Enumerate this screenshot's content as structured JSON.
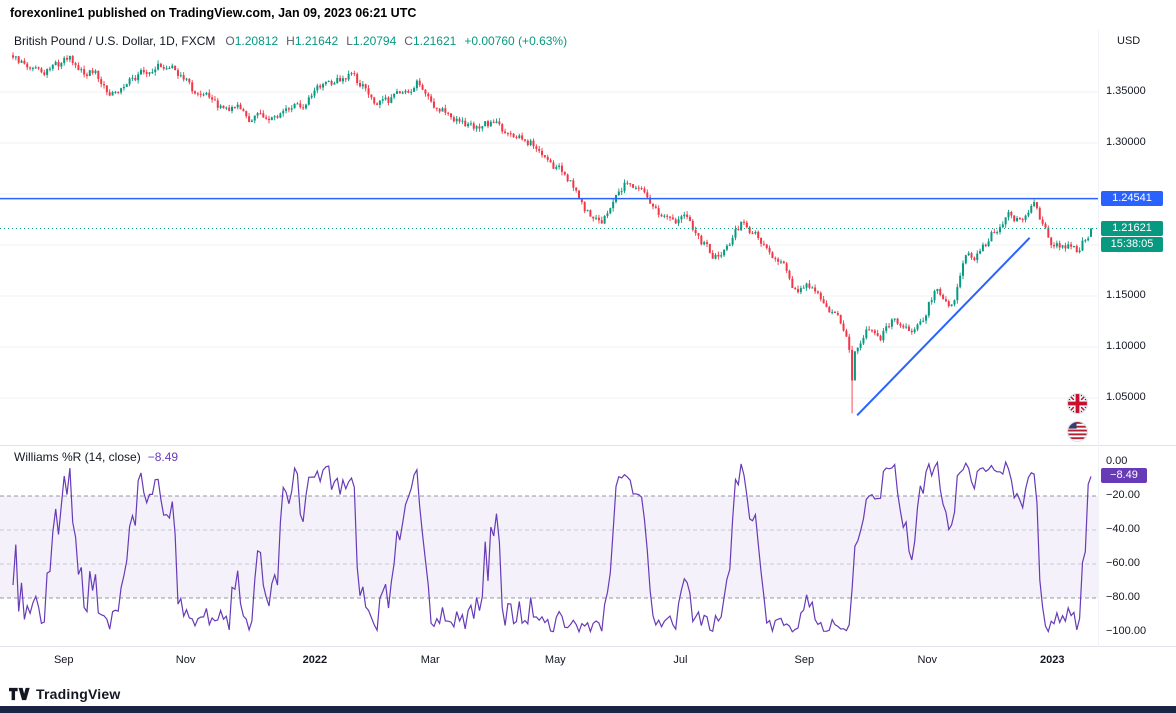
{
  "header": {
    "caption": "forexonline1 published on TradingView.com, Jan 09, 2023 06:21 UTC"
  },
  "legend": {
    "title": "British Pound / U.S. Dollar, 1D, FXCM",
    "ohlc": [
      {
        "k": "O",
        "v": "1.20812"
      },
      {
        "k": "H",
        "v": "1.21642"
      },
      {
        "k": "L",
        "v": "1.20794"
      },
      {
        "k": "C",
        "v": "1.21621"
      }
    ],
    "change": "+0.00760 (+0.63%)"
  },
  "axis": {
    "currency": "USD",
    "price_ticks": [
      {
        "label": "1.35000",
        "price": 1.35
      },
      {
        "label": "1.30000",
        "price": 1.3
      },
      {
        "label": "1.15000",
        "price": 1.15
      },
      {
        "label": "1.10000",
        "price": 1.1
      },
      {
        "label": "1.05000",
        "price": 1.05
      }
    ],
    "level_label": {
      "text": "1.24541",
      "color": "#2962ff"
    },
    "last_price_label": {
      "text": "1.21621",
      "color": "#089981"
    },
    "countdown": "15:38:05"
  },
  "indicator": {
    "label": "Williams %R (14, close)",
    "value_text": "−8.49",
    "value": -8.49,
    "color": "#673ab7",
    "ticks": [
      {
        "label": "0.00",
        "v": 0
      },
      {
        "label": "−20.00",
        "v": -20
      },
      {
        "label": "−40.00",
        "v": -40
      },
      {
        "label": "−60.00",
        "v": -60
      },
      {
        "label": "−80.00",
        "v": -80
      },
      {
        "label": "−100.00",
        "v": -100
      }
    ],
    "band": {
      "upper": -20,
      "lower": -80
    }
  },
  "time_axis": [
    {
      "label": "Sep",
      "t": 0.048,
      "bold": false
    },
    {
      "label": "Nov",
      "t": 0.161,
      "bold": false
    },
    {
      "label": "2022",
      "t": 0.281,
      "bold": true
    },
    {
      "label": "Mar",
      "t": 0.388,
      "bold": false
    },
    {
      "label": "May",
      "t": 0.504,
      "bold": false
    },
    {
      "label": "Jul",
      "t": 0.62,
      "bold": false
    },
    {
      "label": "Sep",
      "t": 0.735,
      "bold": false
    },
    {
      "label": "Nov",
      "t": 0.849,
      "bold": false
    },
    {
      "label": "2023",
      "t": 0.965,
      "bold": true
    }
  ],
  "footer": {
    "brand": "TradingView",
    "bar_color": "#1b2442"
  },
  "chart_data": [
    {
      "type": "candlestick",
      "symbol": "GBPUSD",
      "timeframe": "1D",
      "exchange": "FXCM",
      "title": "British Pound / U.S. Dollar, 1D, FXCM",
      "y_range_visible": [
        1.0,
        1.41
      ],
      "grid_prices": [
        1.35,
        1.3,
        1.25,
        1.2,
        1.15,
        1.1,
        1.05
      ],
      "up_color": "#089981",
      "down_color": "#f23645",
      "weekly_closes": [
        1.386,
        1.378,
        1.364,
        1.375,
        1.384,
        1.373,
        1.367,
        1.344,
        1.355,
        1.364,
        1.375,
        1.379,
        1.368,
        1.35,
        1.344,
        1.333,
        1.338,
        1.324,
        1.327,
        1.324,
        1.335,
        1.341,
        1.353,
        1.359,
        1.368,
        1.355,
        1.34,
        1.341,
        1.353,
        1.36,
        1.341,
        1.332,
        1.323,
        1.31,
        1.318,
        1.313,
        1.311,
        1.302,
        1.283,
        1.274,
        1.257,
        1.234,
        1.224,
        1.249,
        1.262,
        1.248,
        1.228,
        1.222,
        1.227,
        1.209,
        1.187,
        1.201,
        1.222,
        1.213,
        1.193,
        1.183,
        1.152,
        1.159,
        1.142,
        1.128,
        1.086,
        1.117,
        1.109,
        1.131,
        1.112,
        1.13,
        1.161,
        1.138,
        1.183,
        1.189,
        1.211,
        1.228,
        1.224,
        1.24,
        1.204,
        1.201,
        1.192,
        1.216
      ],
      "crash": {
        "t": 0.779,
        "low": 1.035
      },
      "last_candle": {
        "o": 1.20812,
        "h": 1.21642,
        "l": 1.20794,
        "c": 1.21621
      },
      "resistance_line": {
        "price": 1.24541,
        "color": "#2962ff"
      },
      "last_price_line": {
        "price": 1.21621,
        "color": "#089981"
      },
      "trendline": {
        "t1": 0.784,
        "p1": 1.033,
        "t2": 0.944,
        "p2": 1.207,
        "color": "#2962ff"
      }
    },
    {
      "type": "line",
      "name": "Williams %R",
      "params": "(14, close)",
      "period": 14,
      "last_value": -8.49,
      "y_range": [
        -100,
        0
      ],
      "band": [
        -20,
        -80
      ],
      "color": "#673ab7"
    }
  ]
}
